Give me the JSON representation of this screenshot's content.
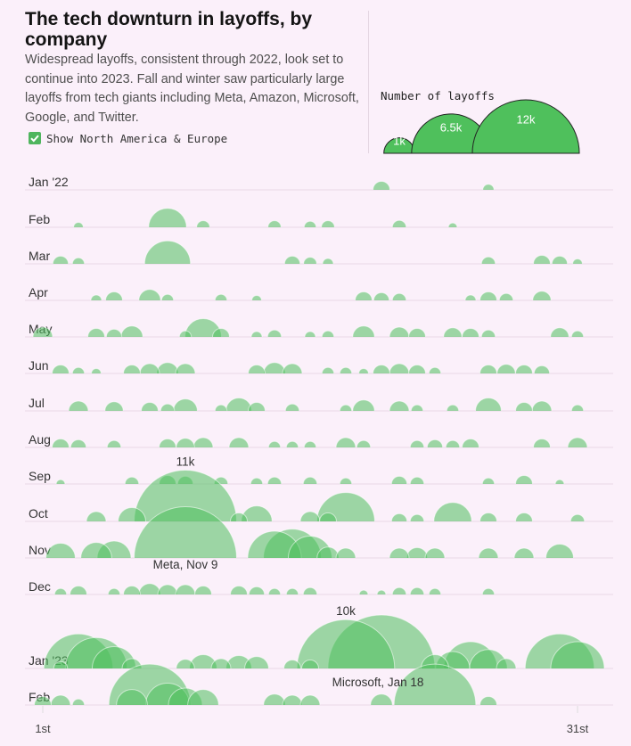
{
  "title": "The tech downturn in layoffs, by company",
  "description": "Widespread layoffs, consistent through 2022, look set to continue into 2023. Fall and winter saw particularly large layoffs from tech giants including Meta, Amazon, Microsoft, Google, and Twitter.",
  "toggle": {
    "label": "Show North America & Europe",
    "checked": true
  },
  "legend": {
    "title": "Number of layoffs",
    "sizes": [
      {
        "value": 1000,
        "label": "1k"
      },
      {
        "value": 6500,
        "label": "6.5k"
      },
      {
        "value": 12000,
        "label": "12k"
      }
    ]
  },
  "colors": {
    "background": "#fbf0fa",
    "bubble": "#4fc05c",
    "baseline": "#e8d9e6",
    "text": "#222222"
  },
  "chart_data": {
    "type": "bubble",
    "x_axis": {
      "ticks": [
        {
          "day": 1,
          "label": "1st"
        },
        {
          "day": 31,
          "label": "31st"
        }
      ]
    },
    "size_encoding": "area proportional to number of layoffs",
    "months": [
      {
        "label": "Jan '22",
        "events": [
          {
            "day": 20,
            "value": 300
          },
          {
            "day": 26,
            "value": 130
          }
        ]
      },
      {
        "label": "Feb",
        "events": [
          {
            "day": 3,
            "value": 100
          },
          {
            "day": 8,
            "value": 1500
          },
          {
            "day": 10,
            "value": 180
          },
          {
            "day": 14,
            "value": 180
          },
          {
            "day": 16,
            "value": 150
          },
          {
            "day": 17,
            "value": 180
          },
          {
            "day": 21,
            "value": 200
          },
          {
            "day": 24,
            "value": 80
          }
        ]
      },
      {
        "label": "Mar",
        "events": [
          {
            "day": 2,
            "value": 250
          },
          {
            "day": 3,
            "value": 150
          },
          {
            "day": 8,
            "value": 2200
          },
          {
            "day": 15,
            "value": 250
          },
          {
            "day": 16,
            "value": 180
          },
          {
            "day": 17,
            "value": 120
          },
          {
            "day": 26,
            "value": 200
          },
          {
            "day": 29,
            "value": 300
          },
          {
            "day": 30,
            "value": 250
          },
          {
            "day": 31,
            "value": 100
          }
        ]
      },
      {
        "label": "Apr",
        "events": [
          {
            "day": 4,
            "value": 120
          },
          {
            "day": 5,
            "value": 300
          },
          {
            "day": 7,
            "value": 500
          },
          {
            "day": 8,
            "value": 150
          },
          {
            "day": 11,
            "value": 150
          },
          {
            "day": 13,
            "value": 100
          },
          {
            "day": 19,
            "value": 300
          },
          {
            "day": 20,
            "value": 250
          },
          {
            "day": 21,
            "value": 200
          },
          {
            "day": 25,
            "value": 120
          },
          {
            "day": 26,
            "value": 300
          },
          {
            "day": 27,
            "value": 200
          },
          {
            "day": 29,
            "value": 350
          }
        ]
      },
      {
        "label": "May",
        "events": [
          {
            "day": 1,
            "value": 400
          },
          {
            "day": 4,
            "value": 300
          },
          {
            "day": 5,
            "value": 250
          },
          {
            "day": 6,
            "value": 500
          },
          {
            "day": 9,
            "value": 150
          },
          {
            "day": 10,
            "value": 1400
          },
          {
            "day": 11,
            "value": 300
          },
          {
            "day": 13,
            "value": 120
          },
          {
            "day": 14,
            "value": 200
          },
          {
            "day": 16,
            "value": 120
          },
          {
            "day": 17,
            "value": 150
          },
          {
            "day": 19,
            "value": 500
          },
          {
            "day": 21,
            "value": 400
          },
          {
            "day": 22,
            "value": 300
          },
          {
            "day": 24,
            "value": 350
          },
          {
            "day": 25,
            "value": 300
          },
          {
            "day": 26,
            "value": 200
          },
          {
            "day": 30,
            "value": 350
          },
          {
            "day": 31,
            "value": 150
          }
        ]
      },
      {
        "label": "Jun",
        "events": [
          {
            "day": 2,
            "value": 300
          },
          {
            "day": 3,
            "value": 150
          },
          {
            "day": 4,
            "value": 100
          },
          {
            "day": 6,
            "value": 300
          },
          {
            "day": 7,
            "value": 400
          },
          {
            "day": 8,
            "value": 500
          },
          {
            "day": 9,
            "value": 400
          },
          {
            "day": 13,
            "value": 300
          },
          {
            "day": 14,
            "value": 500
          },
          {
            "day": 15,
            "value": 400
          },
          {
            "day": 17,
            "value": 150
          },
          {
            "day": 18,
            "value": 150
          },
          {
            "day": 19,
            "value": 100
          },
          {
            "day": 20,
            "value": 300
          },
          {
            "day": 21,
            "value": 400
          },
          {
            "day": 22,
            "value": 300
          },
          {
            "day": 23,
            "value": 150
          },
          {
            "day": 26,
            "value": 300
          },
          {
            "day": 27,
            "value": 350
          },
          {
            "day": 28,
            "value": 300
          },
          {
            "day": 29,
            "value": 250
          }
        ]
      },
      {
        "label": "Jul",
        "events": [
          {
            "day": 3,
            "value": 400
          },
          {
            "day": 5,
            "value": 350
          },
          {
            "day": 7,
            "value": 300
          },
          {
            "day": 8,
            "value": 200
          },
          {
            "day": 9,
            "value": 600
          },
          {
            "day": 11,
            "value": 150
          },
          {
            "day": 12,
            "value": 700
          },
          {
            "day": 13,
            "value": 300
          },
          {
            "day": 15,
            "value": 200
          },
          {
            "day": 18,
            "value": 150
          },
          {
            "day": 19,
            "value": 500
          },
          {
            "day": 21,
            "value": 400
          },
          {
            "day": 22,
            "value": 150
          },
          {
            "day": 24,
            "value": 150
          },
          {
            "day": 26,
            "value": 700
          },
          {
            "day": 28,
            "value": 300
          },
          {
            "day": 29,
            "value": 400
          },
          {
            "day": 31,
            "value": 150
          }
        ]
      },
      {
        "label": "Aug",
        "events": [
          {
            "day": 2,
            "value": 300
          },
          {
            "day": 3,
            "value": 250
          },
          {
            "day": 5,
            "value": 200
          },
          {
            "day": 8,
            "value": 300
          },
          {
            "day": 9,
            "value": 350
          },
          {
            "day": 10,
            "value": 400
          },
          {
            "day": 12,
            "value": 400
          },
          {
            "day": 14,
            "value": 150
          },
          {
            "day": 15,
            "value": 150
          },
          {
            "day": 16,
            "value": 150
          },
          {
            "day": 18,
            "value": 400
          },
          {
            "day": 19,
            "value": 200
          },
          {
            "day": 22,
            "value": 200
          },
          {
            "day": 23,
            "value": 250
          },
          {
            "day": 24,
            "value": 200
          },
          {
            "day": 25,
            "value": 300
          },
          {
            "day": 29,
            "value": 300
          },
          {
            "day": 31,
            "value": 400
          }
        ]
      },
      {
        "label": "Sep",
        "events": [
          {
            "day": 2,
            "value": 80
          },
          {
            "day": 6,
            "value": 200
          },
          {
            "day": 8,
            "value": 300
          },
          {
            "day": 9,
            "value": 250
          },
          {
            "day": 11,
            "value": 200
          },
          {
            "day": 13,
            "value": 150
          },
          {
            "day": 14,
            "value": 200
          },
          {
            "day": 16,
            "value": 200
          },
          {
            "day": 18,
            "value": 150
          },
          {
            "day": 21,
            "value": 250
          },
          {
            "day": 22,
            "value": 200
          },
          {
            "day": 26,
            "value": 150
          },
          {
            "day": 28,
            "value": 300
          },
          {
            "day": 30,
            "value": 80
          }
        ]
      },
      {
        "label": "Oct",
        "events": [
          {
            "day": 4,
            "value": 400
          },
          {
            "day": 6,
            "value": 800
          },
          {
            "day": 9,
            "value": 11000,
            "label": "11k"
          },
          {
            "day": 12,
            "value": 300
          },
          {
            "day": 13,
            "value": 1000
          },
          {
            "day": 16,
            "value": 400
          },
          {
            "day": 17,
            "value": 300
          },
          {
            "day": 18,
            "value": 3500
          },
          {
            "day": 21,
            "value": 250
          },
          {
            "day": 22,
            "value": 200
          },
          {
            "day": 24,
            "value": 1500
          },
          {
            "day": 26,
            "value": 300
          },
          {
            "day": 28,
            "value": 300
          },
          {
            "day": 31,
            "value": 200
          }
        ]
      },
      {
        "label": "Nov",
        "events": [
          {
            "day": 2,
            "value": 900
          },
          {
            "day": 4,
            "value": 1000
          },
          {
            "day": 5,
            "value": 1200
          },
          {
            "day": 9,
            "value": 11000,
            "label": "Meta, Nov 9"
          },
          {
            "day": 14,
            "value": 3000
          },
          {
            "day": 15,
            "value": 3500
          },
          {
            "day": 16,
            "value": 2000
          },
          {
            "day": 17,
            "value": 500
          },
          {
            "day": 18,
            "value": 400
          },
          {
            "day": 21,
            "value": 400
          },
          {
            "day": 22,
            "value": 450
          },
          {
            "day": 23,
            "value": 400
          },
          {
            "day": 26,
            "value": 400
          },
          {
            "day": 28,
            "value": 400
          },
          {
            "day": 30,
            "value": 800
          }
        ]
      },
      {
        "label": "Dec",
        "events": [
          {
            "day": 2,
            "value": 150
          },
          {
            "day": 3,
            "value": 300
          },
          {
            "day": 5,
            "value": 150
          },
          {
            "day": 6,
            "value": 300
          },
          {
            "day": 7,
            "value": 500
          },
          {
            "day": 8,
            "value": 400
          },
          {
            "day": 9,
            "value": 400
          },
          {
            "day": 10,
            "value": 300
          },
          {
            "day": 12,
            "value": 300
          },
          {
            "day": 13,
            "value": 250
          },
          {
            "day": 14,
            "value": 150
          },
          {
            "day": 15,
            "value": 150
          },
          {
            "day": 16,
            "value": 200
          },
          {
            "day": 19,
            "value": 80
          },
          {
            "day": 20,
            "value": 80
          },
          {
            "day": 21,
            "value": 200
          },
          {
            "day": 22,
            "value": 200
          },
          {
            "day": 23,
            "value": 150
          },
          {
            "day": 26,
            "value": 150
          }
        ]
      },
      {
        "label": "Jan '23",
        "events": [
          {
            "day": 2,
            "value": 200
          },
          {
            "day": 3,
            "value": 5000
          },
          {
            "day": 4,
            "value": 4000
          },
          {
            "day": 5,
            "value": 2000
          },
          {
            "day": 6,
            "value": 400
          },
          {
            "day": 9,
            "value": 350
          },
          {
            "day": 10,
            "value": 800
          },
          {
            "day": 11,
            "value": 400
          },
          {
            "day": 12,
            "value": 700
          },
          {
            "day": 13,
            "value": 600
          },
          {
            "day": 15,
            "value": 300
          },
          {
            "day": 16,
            "value": 300
          },
          {
            "day": 18,
            "value": 10000,
            "label": "10k / Microsoft, Jan 18"
          },
          {
            "day": 20,
            "value": 12000
          },
          {
            "day": 23,
            "value": 800
          },
          {
            "day": 24,
            "value": 1200
          },
          {
            "day": 25,
            "value": 3000
          },
          {
            "day": 26,
            "value": 1500
          },
          {
            "day": 27,
            "value": 400
          },
          {
            "day": 30,
            "value": 5000
          },
          {
            "day": 31,
            "value": 3000
          }
        ]
      },
      {
        "label": "Feb",
        "events": [
          {
            "day": 1,
            "value": 300
          },
          {
            "day": 2,
            "value": 400
          },
          {
            "day": 3,
            "value": 150
          },
          {
            "day": 6,
            "value": 1000
          },
          {
            "day": 7,
            "value": 7000
          },
          {
            "day": 8,
            "value": 2000
          },
          {
            "day": 9,
            "value": 1200
          },
          {
            "day": 10,
            "value": 1000
          },
          {
            "day": 14,
            "value": 500
          },
          {
            "day": 15,
            "value": 400
          },
          {
            "day": 16,
            "value": 400
          },
          {
            "day": 20,
            "value": 500
          },
          {
            "day": 23,
            "value": 7000
          },
          {
            "day": 26,
            "value": 300
          }
        ]
      }
    ],
    "annotations": [
      {
        "month": "Oct",
        "day": 9,
        "text": "11k"
      },
      {
        "month": "Nov",
        "day": 9,
        "text": "Meta, Nov 9"
      },
      {
        "month": "Jan '23",
        "day": 18,
        "text": "10k"
      },
      {
        "month": "Jan '23",
        "day": 18,
        "text": "Microsoft, Jan 18"
      }
    ]
  }
}
